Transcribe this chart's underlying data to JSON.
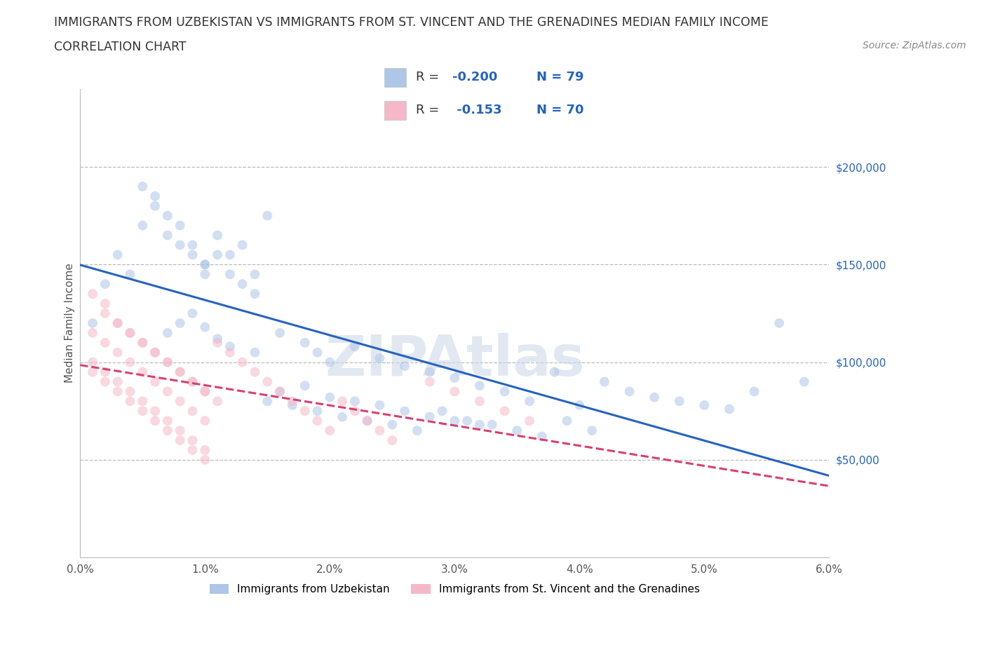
{
  "title": "IMMIGRANTS FROM UZBEKISTAN VS IMMIGRANTS FROM ST. VINCENT AND THE GRENADINES MEDIAN FAMILY INCOME",
  "subtitle": "CORRELATION CHART",
  "source": "Source: ZipAtlas.com",
  "ylabel": "Median Family Income",
  "watermark": "ZIPAtlas",
  "series1": {
    "label": "Immigrants from Uzbekistan",
    "R": -0.2,
    "N": 79,
    "color": "#aec6e8",
    "edge_color": "#5b8dd9",
    "line_color": "#2563be",
    "x": [
      0.001,
      0.002,
      0.003,
      0.004,
      0.005,
      0.006,
      0.007,
      0.008,
      0.009,
      0.01,
      0.01,
      0.011,
      0.012,
      0.013,
      0.014,
      0.015,
      0.005,
      0.006,
      0.007,
      0.008,
      0.009,
      0.01,
      0.011,
      0.012,
      0.013,
      0.014,
      0.007,
      0.008,
      0.009,
      0.01,
      0.011,
      0.012,
      0.014,
      0.016,
      0.018,
      0.019,
      0.02,
      0.022,
      0.024,
      0.026,
      0.028,
      0.03,
      0.032,
      0.034,
      0.036,
      0.038,
      0.04,
      0.042,
      0.044,
      0.046,
      0.048,
      0.05,
      0.052,
      0.054,
      0.056,
      0.058,
      0.016,
      0.018,
      0.02,
      0.022,
      0.024,
      0.026,
      0.028,
      0.03,
      0.032,
      0.015,
      0.017,
      0.019,
      0.021,
      0.023,
      0.025,
      0.027,
      0.029,
      0.031,
      0.033,
      0.035,
      0.037,
      0.039,
      0.041
    ],
    "y": [
      120000,
      140000,
      155000,
      145000,
      170000,
      180000,
      165000,
      160000,
      155000,
      150000,
      145000,
      165000,
      155000,
      160000,
      145000,
      175000,
      190000,
      185000,
      175000,
      170000,
      160000,
      150000,
      155000,
      145000,
      140000,
      135000,
      115000,
      120000,
      125000,
      118000,
      112000,
      108000,
      105000,
      115000,
      110000,
      105000,
      100000,
      108000,
      102000,
      98000,
      95000,
      92000,
      88000,
      85000,
      80000,
      95000,
      78000,
      90000,
      85000,
      82000,
      80000,
      78000,
      76000,
      85000,
      120000,
      90000,
      85000,
      88000,
      82000,
      80000,
      78000,
      75000,
      72000,
      70000,
      68000,
      80000,
      78000,
      75000,
      72000,
      70000,
      68000,
      65000,
      75000,
      70000,
      68000,
      65000,
      62000,
      70000,
      65000
    ]
  },
  "series2": {
    "label": "Immigrants from St. Vincent and the Grenadines",
    "R": -0.153,
    "N": 70,
    "color": "#f5b8c8",
    "edge_color": "#e06080",
    "line_color": "#d94070",
    "x": [
      0.001,
      0.002,
      0.003,
      0.004,
      0.005,
      0.006,
      0.007,
      0.008,
      0.009,
      0.01,
      0.001,
      0.002,
      0.003,
      0.004,
      0.005,
      0.006,
      0.007,
      0.008,
      0.009,
      0.01,
      0.001,
      0.002,
      0.003,
      0.004,
      0.005,
      0.006,
      0.007,
      0.008,
      0.009,
      0.01,
      0.001,
      0.002,
      0.003,
      0.004,
      0.005,
      0.006,
      0.007,
      0.008,
      0.009,
      0.01,
      0.011,
      0.012,
      0.013,
      0.014,
      0.015,
      0.016,
      0.017,
      0.018,
      0.019,
      0.02,
      0.021,
      0.022,
      0.023,
      0.024,
      0.025,
      0.028,
      0.03,
      0.032,
      0.034,
      0.036,
      0.002,
      0.003,
      0.004,
      0.005,
      0.006,
      0.007,
      0.008,
      0.009,
      0.01,
      0.011
    ],
    "y": [
      135000,
      125000,
      120000,
      115000,
      110000,
      105000,
      100000,
      95000,
      90000,
      85000,
      100000,
      95000,
      90000,
      85000,
      80000,
      75000,
      70000,
      65000,
      60000,
      55000,
      115000,
      110000,
      105000,
      100000,
      95000,
      90000,
      85000,
      80000,
      75000,
      70000,
      95000,
      90000,
      85000,
      80000,
      75000,
      70000,
      65000,
      60000,
      55000,
      50000,
      110000,
      105000,
      100000,
      95000,
      90000,
      85000,
      80000,
      75000,
      70000,
      65000,
      80000,
      75000,
      70000,
      65000,
      60000,
      90000,
      85000,
      80000,
      75000,
      70000,
      130000,
      120000,
      115000,
      110000,
      105000,
      100000,
      95000,
      90000,
      85000,
      80000
    ]
  },
  "xlim": [
    0.0,
    0.06
  ],
  "ylim": [
    0,
    240000
  ],
  "yticks": [
    0,
    50000,
    100000,
    150000,
    200000
  ],
  "ytick_labels": [
    "",
    "$50,000",
    "$100,000",
    "$150,000",
    "$200,000"
  ],
  "xticks": [
    0.0,
    0.01,
    0.02,
    0.03,
    0.04,
    0.05,
    0.06
  ],
  "xtick_labels": [
    "0.0%",
    "1.0%",
    "2.0%",
    "3.0%",
    "4.0%",
    "5.0%",
    "6.0%"
  ],
  "grid_color": "#bbbbbb",
  "background_color": "#ffffff",
  "title_color": "#333333",
  "axis_label_color": "#555555",
  "tick_label_color_y": "#2563be",
  "legend_R_color": "#2563be",
  "watermark_color": "#cdd9e8",
  "marker_size": 100,
  "marker_alpha": 0.55
}
